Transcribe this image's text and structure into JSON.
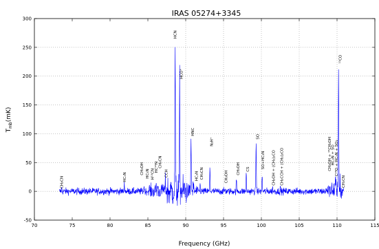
{
  "chart_data": {
    "type": "line",
    "title": "IRAS 05274+3345",
    "xlabel": "Frequency (GHz)",
    "ylabel": "T",
    "ylabel_sub": "mb",
    "ylabel_unit": "(mK)",
    "xlim": [
      70,
      115
    ],
    "ylim": [
      -50,
      300
    ],
    "xticks": [
      70,
      75,
      80,
      85,
      90,
      95,
      100,
      105,
      110,
      115
    ],
    "yticks": [
      -50,
      0,
      50,
      100,
      150,
      200,
      250,
      300
    ],
    "grid": {
      "horizontal": true,
      "vertical": [
        90,
        95,
        100,
        105,
        110
      ],
      "style": "dotted"
    },
    "series": [
      {
        "color": "#0000ff",
        "coverage": [
          73.3,
          110.9
        ],
        "noise_rms_mK": 3,
        "lines": [
          {
            "label": "CH3CN",
            "x": 73.6,
            "peak": 5
          },
          {
            "label": "HC3N",
            "x": 81.9,
            "peak": 15
          },
          {
            "label": "CH3OH",
            "x": 84.5,
            "peak": 10
          },
          {
            "label": "HC5N",
            "x": 85.2,
            "peak": 7
          },
          {
            "label": "H13CN",
            "x": 86.3,
            "peak": 12
          },
          {
            "label": "HC15N",
            "x": 86.1,
            "peak": 10
          },
          {
            "label": "CH3CN",
            "x": 87.0,
            "peak": 10
          },
          {
            "label": "CCH",
            "x": 87.3,
            "peak": 20
          },
          {
            "label": "HCN",
            "x": 88.6,
            "peak": 260
          },
          {
            "label": "HCO+",
            "x": 89.2,
            "peak": 190
          },
          {
            "label": "HNC",
            "x": 90.7,
            "peak": 92
          },
          {
            "label": "HC3N",
            "x": 91.0,
            "peak": 15
          },
          {
            "label": "CH3CN",
            "x": 91.9,
            "peak": 12
          },
          {
            "label": "N2H+",
            "x": 93.2,
            "peak": 40
          },
          {
            "label": "CH3OH",
            "x": 95.2,
            "peak": 5
          },
          {
            "label": "CH3OH",
            "x": 96.7,
            "peak": 20
          },
          {
            "label": "CS",
            "x": 98.0,
            "peak": 30
          },
          {
            "label": "SO",
            "x": 99.3,
            "peak": 88
          },
          {
            "label": "SO+HC3N",
            "x": 100.1,
            "peak": 28
          },
          {
            "label": "CH3OH + (CH3)2CO",
            "x": 101.5,
            "peak": 5
          },
          {
            "label": "CH3CCH + (CH3)2CO",
            "x": 102.5,
            "peak": 5
          },
          {
            "label": "CH3OH + 13CH3OH",
            "x": 108.9,
            "peak": 12
          },
          {
            "label": "HC3N + SO",
            "x": 109.3,
            "peak": 15
          },
          {
            "label": "C18O + HC3N + SO2",
            "x": 109.8,
            "peak": 20
          },
          {
            "label": "13CO",
            "x": 110.2,
            "peak": 228
          },
          {
            "label": "CH3CN",
            "x": 110.4,
            "peak": 15
          }
        ]
      }
    ],
    "annotations": [
      {
        "text": "CH₃CN",
        "x": 73.6,
        "y": 5
      },
      {
        "text": "HC₃N",
        "x": 81.9,
        "y": 16
      },
      {
        "text": "CH₃OH",
        "x": 84.2,
        "y": 28
      },
      {
        "text": "HC₅N",
        "x": 84.9,
        "y": 22
      },
      {
        "text": "H¹³CN",
        "x": 85.6,
        "y": 20
      },
      {
        "text": "HC¹⁵N",
        "x": 86.1,
        "y": 32
      },
      {
        "text": "CH₃CN",
        "x": 86.6,
        "y": 40
      },
      {
        "text": "CCH",
        "x": 87.4,
        "y": 24
      },
      {
        "text": "HCN",
        "x": 88.6,
        "y": 265
      },
      {
        "text": "HCO⁺",
        "x": 89.4,
        "y": 195
      },
      {
        "text": "HNC",
        "x": 90.9,
        "y": 96
      },
      {
        "text": "HC₃N",
        "x": 91.4,
        "y": 18
      },
      {
        "text": "CH₃CN",
        "x": 92.1,
        "y": 20
      },
      {
        "text": "N₂H⁺",
        "x": 93.4,
        "y": 78
      },
      {
        "text": "CH₃OH",
        "x": 95.3,
        "y": 14
      },
      {
        "text": "CH₃OH",
        "x": 96.9,
        "y": 28
      },
      {
        "text": "CS",
        "x": 98.2,
        "y": 34
      },
      {
        "text": "SO",
        "x": 99.5,
        "y": 90
      },
      {
        "text": "SO+HC₃N",
        "x": 100.2,
        "y": 38
      },
      {
        "text": "CH₃OH + (CH₃)₂CO",
        "x": 101.6,
        "y": 10
      },
      {
        "text": "CH₃CCH + (CH₃)₂CO",
        "x": 102.7,
        "y": 10
      },
      {
        "text": "CH₃OH + ¹³CH₃OH",
        "x": 109.0,
        "y": 35
      },
      {
        "text": "HC₃N + SO",
        "x": 109.4,
        "y": 45
      },
      {
        "text": "C¹⁸O + HC₃N + SO₂",
        "x": 109.9,
        "y": 26
      },
      {
        "text": "¹³CO",
        "x": 110.4,
        "y": 222
      },
      {
        "text": "CH₃CN",
        "x": 110.8,
        "y": 6
      }
    ]
  }
}
